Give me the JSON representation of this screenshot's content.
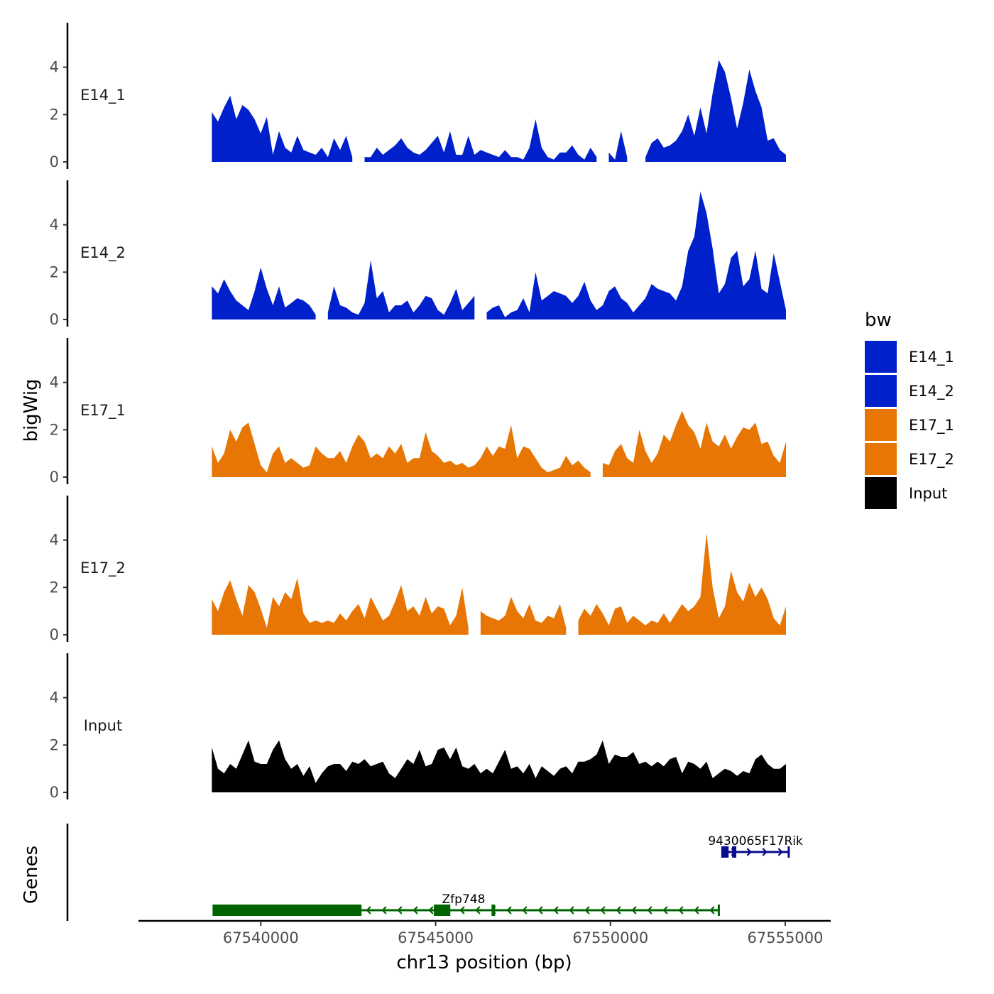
{
  "chart_data": {
    "type": "area",
    "ylabel": "bigWig",
    "genes_label": "Genes",
    "xlabel": "chr13 position (bp)",
    "xlim": [
      67536500,
      67556300
    ],
    "x_ticks": [
      67540000,
      67545000,
      67550000,
      67555000
    ],
    "x_tick_labels": [
      "67540000",
      "67545000",
      "67550000",
      "67555000"
    ],
    "ylim": [
      0,
      6
    ],
    "y_ticks": [
      0,
      2,
      4
    ],
    "y_tick_labels": [
      "0",
      "2",
      "4"
    ],
    "legend": {
      "title": "bw",
      "entries": [
        {
          "label": "E14_1",
          "color": "#0020CC"
        },
        {
          "label": "E14_2",
          "color": "#0020CC"
        },
        {
          "label": "E17_1",
          "color": "#E87605"
        },
        {
          "label": "E17_2",
          "color": "#E87605"
        },
        {
          "label": "Input",
          "color": "#000000"
        }
      ]
    },
    "series": [
      {
        "name": "E14_1",
        "color": "#0020CC",
        "x_start": 67538600,
        "x_end": 67555020,
        "values": [
          2.1,
          1.7,
          2.3,
          2.8,
          1.8,
          2.4,
          2.2,
          1.8,
          1.2,
          1.9,
          0.3,
          1.3,
          0.6,
          0.4,
          1.1,
          0.5,
          0.4,
          0.3,
          0.6,
          0.2,
          1.0,
          0.5,
          1.1,
          0.2,
          null,
          0.2,
          0.2,
          0.6,
          0.3,
          0.5,
          0.7,
          1.0,
          0.6,
          0.4,
          0.3,
          0.5,
          0.8,
          1.1,
          0.4,
          1.3,
          0.3,
          0.3,
          1.1,
          0.3,
          0.5,
          0.4,
          0.3,
          0.2,
          0.5,
          0.2,
          0.2,
          0.1,
          0.6,
          1.8,
          0.6,
          0.2,
          0.1,
          0.4,
          0.4,
          0.7,
          0.3,
          0.1,
          0.6,
          0.2,
          null,
          0.4,
          0.1,
          1.3,
          0.2,
          null,
          null,
          0.2,
          0.8,
          1.0,
          0.6,
          0.7,
          0.9,
          1.3,
          2.0,
          1.1,
          2.3,
          1.2,
          2.9,
          4.3,
          3.8,
          2.7,
          1.4,
          2.5,
          3.9,
          3.0,
          2.3,
          0.9,
          1.0,
          0.5,
          0.3
        ]
      },
      {
        "name": "E14_2",
        "color": "#0020CC",
        "x_start": 67538600,
        "x_end": 67555020,
        "values": [
          1.4,
          1.1,
          1.7,
          1.2,
          0.8,
          0.6,
          0.4,
          1.2,
          2.2,
          1.3,
          0.6,
          1.4,
          0.5,
          0.7,
          0.9,
          0.8,
          0.6,
          0.2,
          null,
          0.3,
          1.4,
          0.6,
          0.5,
          0.3,
          0.2,
          0.7,
          2.5,
          0.9,
          1.2,
          0.3,
          0.6,
          0.6,
          0.8,
          0.3,
          0.6,
          1.0,
          0.9,
          0.4,
          0.2,
          0.7,
          1.3,
          0.4,
          0.7,
          1.0,
          null,
          0.3,
          0.5,
          0.6,
          0.1,
          0.3,
          0.4,
          0.9,
          0.3,
          2.0,
          0.8,
          1.0,
          1.2,
          1.1,
          1.0,
          0.7,
          1.0,
          1.6,
          0.8,
          0.4,
          0.6,
          1.2,
          1.4,
          0.9,
          0.7,
          0.3,
          0.6,
          0.9,
          1.5,
          1.3,
          1.2,
          1.1,
          0.8,
          1.4,
          2.9,
          3.5,
          5.4,
          4.5,
          3.0,
          1.1,
          1.5,
          2.6,
          2.9,
          1.4,
          1.7,
          2.9,
          1.3,
          1.1,
          2.8,
          1.6,
          0.4
        ]
      },
      {
        "name": "E17_1",
        "color": "#E87605",
        "x_start": 67538600,
        "x_end": 67555020,
        "values": [
          1.3,
          0.6,
          1.0,
          2.0,
          1.5,
          2.1,
          2.3,
          1.4,
          0.5,
          0.2,
          1.0,
          1.3,
          0.6,
          0.8,
          0.6,
          0.4,
          0.5,
          1.3,
          1.0,
          0.8,
          0.8,
          1.1,
          0.6,
          1.3,
          1.8,
          1.5,
          0.8,
          1.0,
          0.8,
          1.3,
          1.0,
          1.4,
          0.6,
          0.8,
          0.8,
          1.9,
          1.1,
          0.9,
          0.6,
          0.7,
          0.5,
          0.6,
          0.4,
          0.5,
          0.8,
          1.3,
          0.9,
          1.3,
          1.2,
          2.2,
          0.8,
          1.3,
          1.2,
          0.8,
          0.4,
          0.2,
          0.3,
          0.4,
          0.9,
          0.5,
          0.7,
          0.4,
          0.2,
          null,
          0.6,
          0.5,
          1.1,
          1.4,
          0.8,
          0.6,
          2.0,
          1.1,
          0.6,
          1.0,
          1.8,
          1.5,
          2.2,
          2.8,
          2.2,
          1.9,
          1.2,
          2.3,
          1.5,
          1.3,
          1.8,
          1.2,
          1.7,
          2.1,
          2.0,
          2.3,
          1.4,
          1.5,
          0.9,
          0.6,
          1.5
        ]
      },
      {
        "name": "E17_2",
        "color": "#E87605",
        "x_start": 67538600,
        "x_end": 67555020,
        "values": [
          1.5,
          1.0,
          1.8,
          2.3,
          1.5,
          0.8,
          2.1,
          1.8,
          1.1,
          0.3,
          1.6,
          1.2,
          1.8,
          1.5,
          2.4,
          0.9,
          0.5,
          0.6,
          0.5,
          0.6,
          0.5,
          0.9,
          0.6,
          1.0,
          1.3,
          0.7,
          1.6,
          1.1,
          0.6,
          0.8,
          1.4,
          2.1,
          1.0,
          1.2,
          0.8,
          1.6,
          0.9,
          1.2,
          1.1,
          0.4,
          0.8,
          2.0,
          0.3,
          null,
          1.0,
          0.8,
          0.7,
          0.6,
          0.8,
          1.6,
          1.0,
          0.7,
          1.3,
          0.6,
          0.5,
          0.8,
          0.7,
          1.3,
          0.3,
          null,
          0.6,
          1.1,
          0.8,
          1.3,
          0.9,
          0.4,
          1.1,
          1.2,
          0.5,
          0.8,
          0.6,
          0.4,
          0.6,
          0.5,
          0.9,
          0.5,
          0.9,
          1.3,
          1.0,
          1.2,
          1.6,
          4.3,
          2.0,
          0.7,
          1.2,
          2.7,
          1.8,
          1.4,
          2.2,
          1.6,
          2.0,
          1.5,
          0.7,
          0.4,
          1.2
        ]
      },
      {
        "name": "Input",
        "color": "#000000",
        "x_start": 67538600,
        "x_end": 67555020,
        "values": [
          1.9,
          1.0,
          0.8,
          1.2,
          1.0,
          1.6,
          2.2,
          1.3,
          1.2,
          1.2,
          1.8,
          2.2,
          1.4,
          1.0,
          1.2,
          0.7,
          1.1,
          0.4,
          0.8,
          1.1,
          1.2,
          1.2,
          0.9,
          1.3,
          1.2,
          1.4,
          1.1,
          1.2,
          1.3,
          0.8,
          0.6,
          1.0,
          1.4,
          1.2,
          1.8,
          1.1,
          1.2,
          1.8,
          1.9,
          1.4,
          1.9,
          1.1,
          1.0,
          1.2,
          0.8,
          1.0,
          0.8,
          1.3,
          1.8,
          1.0,
          1.1,
          0.8,
          1.2,
          0.6,
          1.1,
          0.9,
          0.7,
          1.0,
          1.1,
          0.8,
          1.3,
          1.3,
          1.4,
          1.6,
          2.2,
          1.2,
          1.6,
          1.5,
          1.5,
          1.7,
          1.2,
          1.3,
          1.1,
          1.3,
          1.1,
          1.4,
          1.5,
          0.8,
          1.3,
          1.2,
          1.0,
          1.3,
          0.6,
          0.8,
          1.0,
          0.9,
          0.7,
          0.9,
          0.8,
          1.4,
          1.6,
          1.2,
          1.0,
          1.0,
          1.2
        ]
      }
    ],
    "genes": [
      {
        "name": "9430065F17Rik",
        "strand": "+",
        "start": 67553200,
        "end": 67555100,
        "color": "#0A0A8C",
        "exons": [
          [
            67553200,
            67553380
          ],
          [
            67553480,
            67553600
          ]
        ]
      },
      {
        "name": "Zfp748",
        "strand": "-",
        "start": 67538650,
        "end": 67553100,
        "color": "#006400",
        "exons": [
          [
            67538650,
            67542880
          ],
          [
            67544950,
            67545420
          ],
          [
            67546600,
            67546700
          ]
        ]
      }
    ]
  }
}
